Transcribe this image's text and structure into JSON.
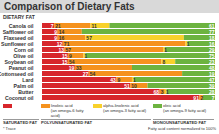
{
  "chart_data": {
    "type": "bar",
    "title": "Comparison of Dietary Fats",
    "ylabel": "DIETARY FAT",
    "orientation": "horizontal",
    "stacked": true,
    "data_labels": true,
    "tick_labels": "y",
    "xlim": [
      0,
      100
    ],
    "categories": [
      "Canola oil",
      "Safflower oil",
      "Flaxseed oil",
      "Sunflower oil",
      "Corn oil",
      "Olive oil",
      "Soybean oil",
      "Peanut oil",
      "Cottonseed oil",
      "Lard",
      "Palm oil",
      "Butter",
      "Coconut oil"
    ],
    "series": [
      {
        "name": "SATURATED FAT",
        "color": "#d7262b",
        "values": [
          7,
          9,
          9,
          12,
          13,
          15,
          15,
          19,
          27,
          43,
          51,
          68,
          91
        ]
      },
      {
        "name": "linoleic acid",
        "note": "(an omega-6 fatty acid)",
        "group": "POLYUNSATURATED FAT",
        "color": "#f5921e",
        "values": [
          21,
          14,
          16,
          71,
          57,
          9,
          54,
          33,
          54,
          9,
          10,
          3,
          2
        ]
      },
      {
        "name": "alpha-linolenic acid",
        "note": "(an omega-3 fatty acid)",
        "group": "POLYUNSATURATED FAT",
        "color": "#f8d12b",
        "values": [
          11,
          null,
          57,
          1,
          1,
          1,
          8,
          null,
          null,
          1,
          null,
          1,
          null
        ]
      },
      {
        "name": "oleic acid",
        "note": "(an omega-9 fatty acid)",
        "group": "MONOUNSATURATED FAT",
        "color": "#6cb33f",
        "values": [
          61,
          77,
          18,
          16,
          29,
          75,
          23,
          48,
          19,
          47,
          39,
          28,
          7
        ]
      }
    ],
    "notes": [
      "* Trace",
      "Fatty acid content normalized to 100%"
    ]
  }
}
